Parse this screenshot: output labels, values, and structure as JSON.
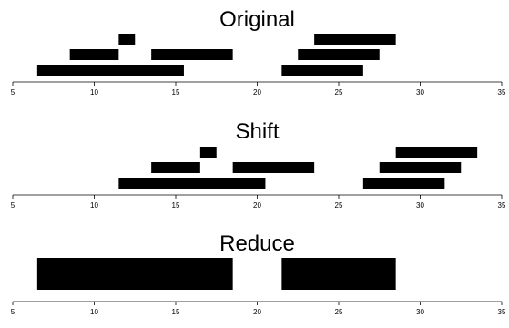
{
  "chart_data": [
    {
      "type": "bar",
      "title": "Original",
      "xlim": [
        5,
        35
      ],
      "x_ticks": [
        5,
        10,
        15,
        20,
        25,
        30,
        35
      ],
      "intervals": [
        {
          "row": 1,
          "start": 6.5,
          "end": 15.5
        },
        {
          "row": 1,
          "start": 21.5,
          "end": 26.5
        },
        {
          "row": 2,
          "start": 8.5,
          "end": 11.5
        },
        {
          "row": 2,
          "start": 13.5,
          "end": 18.5
        },
        {
          "row": 2,
          "start": 22.5,
          "end": 27.5
        },
        {
          "row": 3,
          "start": 11.5,
          "end": 12.5
        },
        {
          "row": 3,
          "start": 23.5,
          "end": 28.5
        }
      ]
    },
    {
      "type": "bar",
      "title": "Shift",
      "xlim": [
        5,
        35
      ],
      "x_ticks": [
        5,
        10,
        15,
        20,
        25,
        30,
        35
      ],
      "intervals": [
        {
          "row": 1,
          "start": 11.5,
          "end": 20.5
        },
        {
          "row": 1,
          "start": 26.5,
          "end": 31.5
        },
        {
          "row": 2,
          "start": 13.5,
          "end": 16.5
        },
        {
          "row": 2,
          "start": 18.5,
          "end": 23.5
        },
        {
          "row": 2,
          "start": 27.5,
          "end": 32.5
        },
        {
          "row": 3,
          "start": 16.5,
          "end": 17.5
        },
        {
          "row": 3,
          "start": 28.5,
          "end": 33.5
        }
      ]
    },
    {
      "type": "bar",
      "title": "Reduce",
      "xlim": [
        5,
        35
      ],
      "x_ticks": [
        5,
        10,
        15,
        20,
        25,
        30,
        35
      ],
      "intervals": [
        {
          "row": 1,
          "start": 6.5,
          "end": 18.5
        },
        {
          "row": 1,
          "start": 21.5,
          "end": 28.5
        }
      ]
    }
  ]
}
